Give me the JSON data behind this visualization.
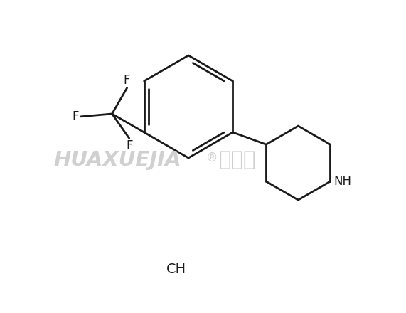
{
  "background_color": "#ffffff",
  "line_color": "#1a1a1a",
  "line_width": 2.0,
  "watermark_text": "HUAXUEJIA",
  "watermark_cn": "化学加",
  "watermark_color": "#d0d0d0",
  "watermark_reg": "®",
  "salt_label": "CH",
  "label_F1": "F",
  "label_F2": "F",
  "label_F3": "F",
  "label_NH": "NH"
}
